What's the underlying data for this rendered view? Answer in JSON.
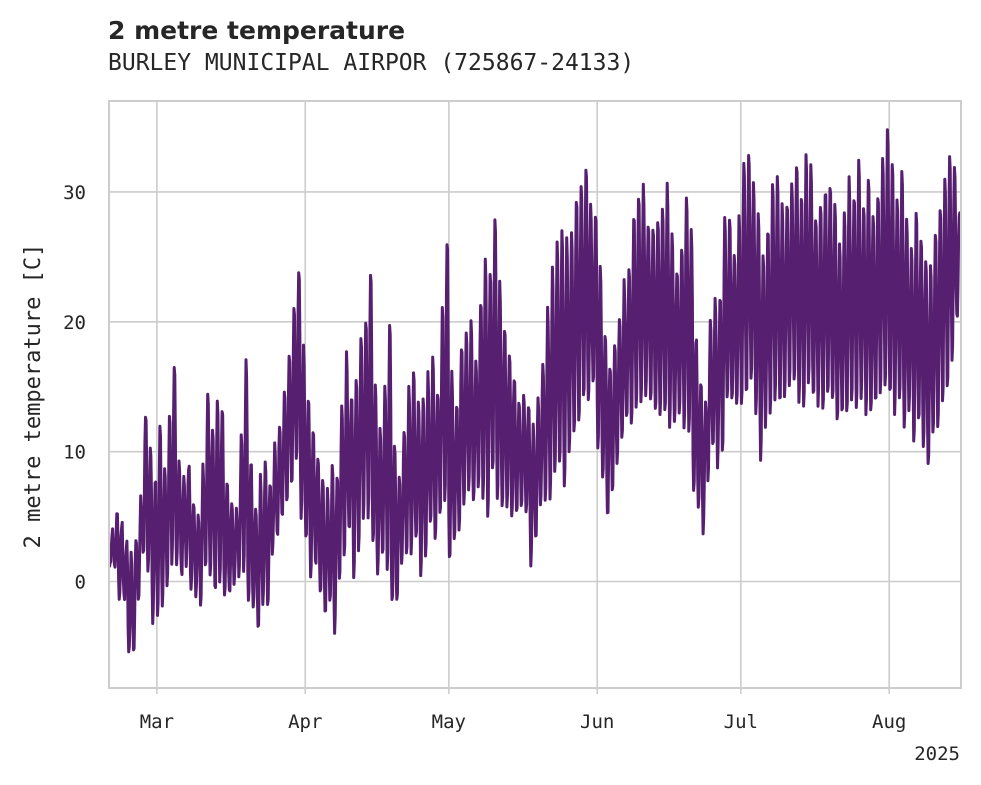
{
  "chart_data": {
    "type": "line",
    "title": "2 metre temperature",
    "subtitle": "BURLEY MUNICIPAL AIRPOR (725867-24133)",
    "ylabel": "2 metre temperature [C]",
    "xlabel": "",
    "year_label": "2025",
    "x_range": [
      "2025-02-19",
      "2025-08-15"
    ],
    "ylim": [
      -8.2,
      37
    ],
    "grid": true,
    "line_color": "#561f6f",
    "x_ticks": [
      {
        "date": "2025-03-01",
        "label": "Mar"
      },
      {
        "date": "2025-04-01",
        "label": "Apr"
      },
      {
        "date": "2025-05-01",
        "label": "May"
      },
      {
        "date": "2025-06-01",
        "label": "Jun"
      },
      {
        "date": "2025-07-01",
        "label": "Jul"
      },
      {
        "date": "2025-08-01",
        "label": "Aug"
      }
    ],
    "y_ticks": [
      0,
      10,
      20,
      30
    ],
    "series": [
      {
        "daily_min_max": [
          [
            "2025-02-19",
            0.8,
            4.0
          ],
          [
            "2025-02-20",
            1.0,
            5.0
          ],
          [
            "2025-02-21",
            -1.0,
            4.5
          ],
          [
            "2025-02-22",
            -1.5,
            3.0
          ],
          [
            "2025-02-23",
            -6.0,
            2.0
          ],
          [
            "2025-02-24",
            -5.5,
            3.5
          ],
          [
            "2025-02-25",
            -1.5,
            6.5
          ],
          [
            "2025-02-26",
            2.0,
            13.0
          ],
          [
            "2025-02-27",
            1.0,
            10.5
          ],
          [
            "2025-02-28",
            -3.0,
            8.0
          ],
          [
            "2025-03-01",
            -3.0,
            12.0
          ],
          [
            "2025-03-02",
            -2.0,
            9.0
          ],
          [
            "2025-03-03",
            -0.5,
            13.0
          ],
          [
            "2025-03-04",
            1.5,
            16.5
          ],
          [
            "2025-03-05",
            1.5,
            9.5
          ],
          [
            "2025-03-06",
            0.5,
            8.0
          ],
          [
            "2025-03-07",
            1.5,
            9.0
          ],
          [
            "2025-03-08",
            -0.5,
            6.0
          ],
          [
            "2025-03-09",
            -1.0,
            5.0
          ],
          [
            "2025-03-10",
            -1.5,
            9.0
          ],
          [
            "2025-03-11",
            1.0,
            15.0
          ],
          [
            "2025-03-12",
            0.5,
            12.0
          ],
          [
            "2025-03-13",
            -1.0,
            14.0
          ],
          [
            "2025-03-14",
            0.0,
            13.5
          ],
          [
            "2025-03-15",
            -1.5,
            8.0
          ],
          [
            "2025-03-16",
            -1.0,
            6.0
          ],
          [
            "2025-03-17",
            0.0,
            5.5
          ],
          [
            "2025-03-18",
            0.5,
            11.0
          ],
          [
            "2025-03-19",
            1.0,
            17.0
          ],
          [
            "2025-03-20",
            -1.5,
            9.5
          ],
          [
            "2025-03-21",
            -2.0,
            6.0
          ],
          [
            "2025-03-22",
            -4.0,
            8.0
          ],
          [
            "2025-03-23",
            -2.0,
            9.5
          ],
          [
            "2025-03-24",
            -1.5,
            8.0
          ],
          [
            "2025-03-25",
            2.0,
            10.5
          ],
          [
            "2025-03-26",
            3.5,
            12.0
          ],
          [
            "2025-03-27",
            5.0,
            14.5
          ],
          [
            "2025-03-28",
            6.0,
            18.0
          ],
          [
            "2025-03-29",
            7.0,
            21.0
          ],
          [
            "2025-03-30",
            9.0,
            24.5
          ],
          [
            "2025-03-31",
            5.0,
            18.0
          ],
          [
            "2025-04-01",
            3.0,
            14.0
          ],
          [
            "2025-04-02",
            0.5,
            12.0
          ],
          [
            "2025-04-03",
            1.0,
            10.0
          ],
          [
            "2025-04-04",
            -1.0,
            8.0
          ],
          [
            "2025-04-05",
            -2.5,
            7.0
          ],
          [
            "2025-04-06",
            -2.0,
            9.0
          ],
          [
            "2025-04-07",
            -4.0,
            8.5
          ],
          [
            "2025-04-08",
            0.0,
            14.0
          ],
          [
            "2025-04-09",
            2.0,
            17.5
          ],
          [
            "2025-04-10",
            4.0,
            14.5
          ],
          [
            "2025-04-11",
            0.5,
            16.0
          ],
          [
            "2025-04-12",
            2.0,
            19.0
          ],
          [
            "2025-04-13",
            4.5,
            20.0
          ],
          [
            "2025-04-14",
            5.0,
            24.0
          ],
          [
            "2025-04-15",
            3.0,
            15.5
          ],
          [
            "2025-04-16",
            0.5,
            12.0
          ],
          [
            "2025-04-17",
            2.0,
            15.0
          ],
          [
            "2025-04-18",
            1.0,
            20.5
          ],
          [
            "2025-04-19",
            -1.5,
            11.0
          ],
          [
            "2025-04-20",
            -2.0,
            8.0
          ],
          [
            "2025-04-21",
            1.0,
            12.0
          ],
          [
            "2025-04-22",
            2.0,
            15.0
          ],
          [
            "2025-04-23",
            2.0,
            16.5
          ],
          [
            "2025-04-24",
            3.0,
            14.0
          ],
          [
            "2025-04-25",
            0.5,
            14.5
          ],
          [
            "2025-04-26",
            1.5,
            16.0
          ],
          [
            "2025-04-27",
            4.0,
            17.5
          ],
          [
            "2025-04-28",
            3.0,
            14.5
          ],
          [
            "2025-04-29",
            5.0,
            21.0
          ],
          [
            "2025-04-30",
            6.0,
            26.5
          ],
          [
            "2025-05-01",
            1.5,
            16.0
          ],
          [
            "2025-05-02",
            3.0,
            13.5
          ],
          [
            "2025-05-03",
            3.5,
            18.5
          ],
          [
            "2025-05-04",
            5.5,
            19.0
          ],
          [
            "2025-05-05",
            7.0,
            20.0
          ],
          [
            "2025-05-06",
            6.0,
            17.0
          ],
          [
            "2025-05-07",
            7.0,
            22.0
          ],
          [
            "2025-05-08",
            6.0,
            25.0
          ],
          [
            "2025-05-09",
            5.0,
            24.0
          ],
          [
            "2025-05-10",
            8.0,
            28.5
          ],
          [
            "2025-05-11",
            6.5,
            23.0
          ],
          [
            "2025-05-12",
            5.5,
            20.0
          ],
          [
            "2025-05-13",
            6.0,
            18.0
          ],
          [
            "2025-05-14",
            5.0,
            16.0
          ],
          [
            "2025-05-15",
            5.5,
            13.5
          ],
          [
            "2025-05-16",
            6.0,
            14.5
          ],
          [
            "2025-05-17",
            5.0,
            14.0
          ],
          [
            "2025-05-18",
            1.5,
            12.0
          ],
          [
            "2025-05-19",
            3.0,
            14.5
          ],
          [
            "2025-05-20",
            5.5,
            17.0
          ],
          [
            "2025-05-21",
            6.0,
            21.0
          ],
          [
            "2025-05-22",
            6.5,
            24.5
          ],
          [
            "2025-05-23",
            8.0,
            26.0
          ],
          [
            "2025-05-24",
            9.0,
            27.0
          ],
          [
            "2025-05-25",
            7.5,
            26.5
          ],
          [
            "2025-05-26",
            10.0,
            27.0
          ],
          [
            "2025-05-27",
            11.0,
            30.0
          ],
          [
            "2025-05-28",
            12.0,
            31.0
          ],
          [
            "2025-05-29",
            14.0,
            32.0
          ],
          [
            "2025-05-30",
            13.5,
            29.0
          ],
          [
            "2025-05-31",
            15.0,
            28.5
          ],
          [
            "2025-06-01",
            10.5,
            24.0
          ],
          [
            "2025-06-02",
            8.0,
            19.5
          ],
          [
            "2025-06-03",
            5.0,
            17.0
          ],
          [
            "2025-06-04",
            7.0,
            18.5
          ],
          [
            "2025-06-05",
            9.0,
            20.5
          ],
          [
            "2025-06-06",
            11.0,
            23.0
          ],
          [
            "2025-06-07",
            12.5,
            24.5
          ],
          [
            "2025-06-08",
            12.0,
            28.5
          ],
          [
            "2025-06-09",
            13.0,
            30.0
          ],
          [
            "2025-06-10",
            14.0,
            30.5
          ],
          [
            "2025-06-11",
            14.5,
            28.0
          ],
          [
            "2025-06-12",
            14.0,
            27.0
          ],
          [
            "2025-06-13",
            13.0,
            28.0
          ],
          [
            "2025-06-14",
            12.5,
            29.0
          ],
          [
            "2025-06-15",
            13.0,
            30.5
          ],
          [
            "2025-06-16",
            12.0,
            27.0
          ],
          [
            "2025-06-17",
            12.0,
            24.0
          ],
          [
            "2025-06-18",
            13.0,
            25.5
          ],
          [
            "2025-06-19",
            12.0,
            30.0
          ],
          [
            "2025-06-20",
            11.5,
            27.0
          ],
          [
            "2025-06-21",
            7.0,
            19.0
          ],
          [
            "2025-06-22",
            6.0,
            15.5
          ],
          [
            "2025-06-23",
            4.0,
            14.0
          ],
          [
            "2025-06-24",
            7.5,
            20.0
          ],
          [
            "2025-06-25",
            10.0,
            21.5
          ],
          [
            "2025-06-26",
            9.0,
            22.0
          ],
          [
            "2025-06-27",
            10.0,
            28.5
          ],
          [
            "2025-06-28",
            14.0,
            28.0
          ],
          [
            "2025-06-29",
            13.5,
            25.5
          ],
          [
            "2025-06-30",
            13.0,
            28.0
          ],
          [
            "2025-07-01",
            13.0,
            33.0
          ],
          [
            "2025-07-02",
            14.0,
            33.0
          ],
          [
            "2025-07-03",
            15.0,
            31.0
          ],
          [
            "2025-07-04",
            13.0,
            28.5
          ],
          [
            "2025-07-05",
            9.5,
            25.0
          ],
          [
            "2025-07-06",
            12.0,
            27.5
          ],
          [
            "2025-07-07",
            13.0,
            30.5
          ],
          [
            "2025-07-08",
            14.0,
            31.5
          ],
          [
            "2025-07-09",
            13.5,
            29.0
          ],
          [
            "2025-07-10",
            14.0,
            29.5
          ],
          [
            "2025-07-11",
            15.0,
            31.0
          ],
          [
            "2025-07-12",
            15.0,
            32.5
          ],
          [
            "2025-07-13",
            14.0,
            30.0
          ],
          [
            "2025-07-14",
            13.0,
            33.0
          ],
          [
            "2025-07-15",
            15.0,
            32.0
          ],
          [
            "2025-07-16",
            14.0,
            28.0
          ],
          [
            "2025-07-17",
            13.5,
            29.5
          ],
          [
            "2025-07-18",
            13.0,
            30.5
          ],
          [
            "2025-07-19",
            14.0,
            31.0
          ],
          [
            "2025-07-20",
            13.5,
            29.0
          ],
          [
            "2025-07-21",
            12.0,
            26.0
          ],
          [
            "2025-07-22",
            12.5,
            28.5
          ],
          [
            "2025-07-23",
            13.0,
            31.0
          ],
          [
            "2025-07-24",
            14.0,
            30.0
          ],
          [
            "2025-07-25",
            13.5,
            32.5
          ],
          [
            "2025-07-26",
            14.0,
            29.0
          ],
          [
            "2025-07-27",
            13.0,
            31.0
          ],
          [
            "2025-07-28",
            13.0,
            28.5
          ],
          [
            "2025-07-29",
            13.5,
            30.0
          ],
          [
            "2025-07-30",
            14.0,
            33.0
          ],
          [
            "2025-07-31",
            15.0,
            35.0
          ],
          [
            "2025-08-01",
            14.0,
            32.0
          ],
          [
            "2025-08-02",
            13.0,
            30.0
          ],
          [
            "2025-08-03",
            14.0,
            31.5
          ],
          [
            "2025-08-04",
            12.0,
            28.0
          ],
          [
            "2025-08-05",
            13.0,
            26.0
          ],
          [
            "2025-08-06",
            11.0,
            28.5
          ],
          [
            "2025-08-07",
            12.0,
            26.5
          ],
          [
            "2025-08-08",
            10.5,
            25.0
          ],
          [
            "2025-08-09",
            8.5,
            24.5
          ],
          [
            "2025-08-10",
            11.0,
            27.0
          ],
          [
            "2025-08-11",
            12.0,
            29.0
          ],
          [
            "2025-08-12",
            14.0,
            31.0
          ],
          [
            "2025-08-13",
            15.0,
            33.0
          ],
          [
            "2025-08-14",
            17.0,
            32.5
          ],
          [
            "2025-08-15",
            20.0,
            28.5
          ]
        ]
      }
    ]
  }
}
